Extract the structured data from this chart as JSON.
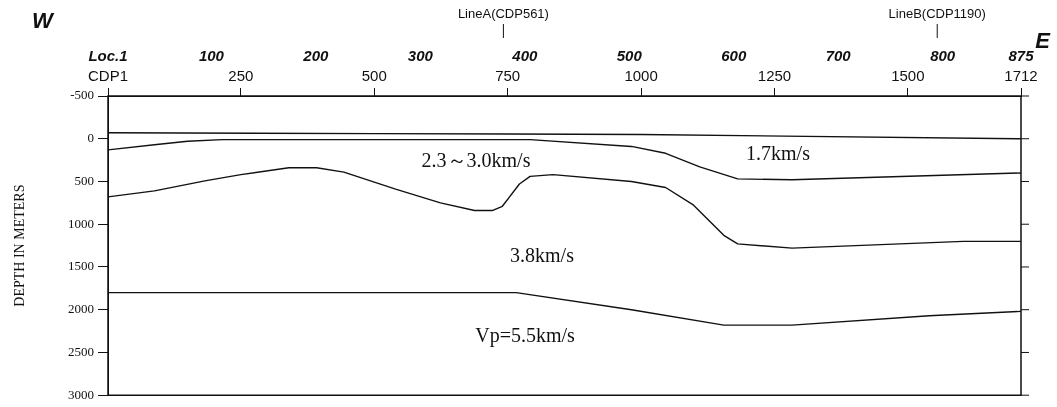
{
  "chart_data": {
    "type": "line",
    "ylabel": "DEPTH IN METERS",
    "xlim": [
      1,
      1712
    ],
    "xticks": [
      {
        "value": 1,
        "label": "CDP1"
      },
      250,
      500,
      750,
      1000,
      1250,
      1500,
      1712
    ],
    "x2lim": [
      1,
      875
    ],
    "x2ticks": [
      {
        "value": 1,
        "label": "Loc.1"
      },
      100,
      200,
      300,
      400,
      500,
      600,
      700,
      800,
      875
    ],
    "ylim": [
      3000,
      -500
    ],
    "yticks": [
      -500,
      0,
      500,
      1000,
      1500,
      2000,
      2500,
      3000
    ],
    "grid": false,
    "legend": false,
    "marker": "none",
    "line_style": "solid",
    "tick_labels": "xy",
    "series": [
      {
        "color": "#111111",
        "x": [
          1,
          500,
          1000,
          1712
        ],
        "values": [
          -70,
          -60,
          -50,
          0
        ]
      },
      {
        "color": "#111111",
        "x": [
          1,
          88,
          150,
          215,
          792,
          982,
          1046,
          1110,
          1181,
          1283,
          1712
        ],
        "values": [
          130,
          70,
          30,
          10,
          10,
          90,
          170,
          330,
          470,
          480,
          400
        ]
      },
      {
        "color": "#111111",
        "x": [
          1,
          88,
          185,
          250,
          340,
          392,
          443,
          540,
          624,
          688,
          721,
          740,
          772,
          792,
          835,
          982,
          1046,
          1097,
          1155,
          1181,
          1283,
          1604,
          1712
        ],
        "values": [
          680,
          610,
          490,
          420,
          340,
          340,
          390,
          590,
          750,
          840,
          840,
          790,
          530,
          440,
          420,
          500,
          570,
          770,
          1130,
          1230,
          1280,
          1200,
          1200
        ]
      },
      {
        "color": "#111111",
        "x": [
          1,
          766,
          982,
          1155,
          1283,
          1540,
          1712
        ],
        "values": [
          1800,
          1800,
          2000,
          2180,
          2180,
          2070,
          2020
        ]
      }
    ],
    "ref_lines": [
      {
        "axis": "x",
        "value": 742,
        "label": "LineA(CDP561)"
      },
      {
        "axis": "x",
        "value": 1555,
        "label": "LineB(CDP1190)"
      }
    ],
    "annotations": [
      "W",
      "E",
      "2.3～3.0km/s",
      "1.7km/s",
      "3.8km/s",
      "Vp=5.5km/s"
    ]
  }
}
